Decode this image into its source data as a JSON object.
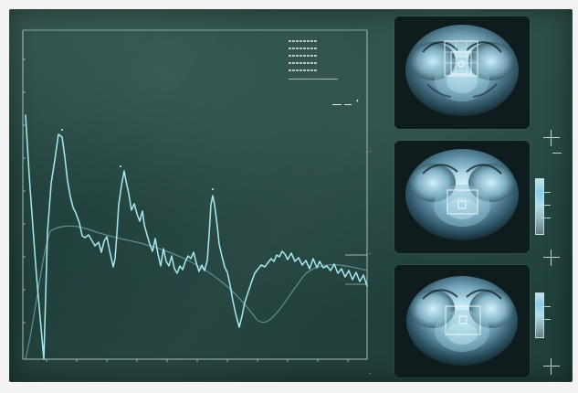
{
  "photo": {
    "subject": "mr-spectroscopy-monitor"
  },
  "spectrum": {
    "title": "",
    "top_right_glyph": "’",
    "colors": {
      "trace": "#a9edf5",
      "baseline": "#6f9aa1",
      "axis": "#d3e7ea"
    }
  },
  "brain_panels": {
    "count": 3
  }
}
